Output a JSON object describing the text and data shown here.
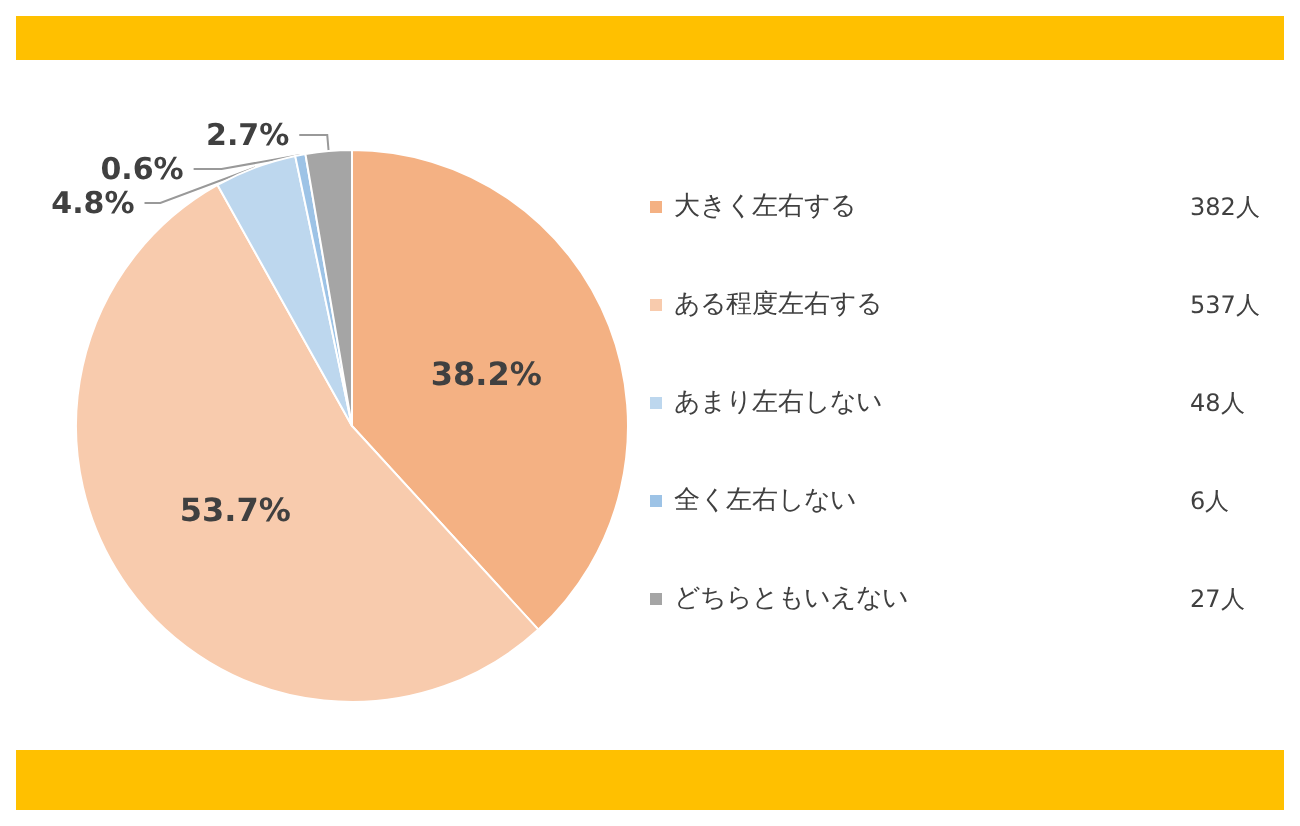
{
  "chart_data": {
    "type": "pie",
    "categories": [
      "大きく左右する",
      "ある程度左右する",
      "あまり左右しない",
      "全く左右しない",
      "どちらともいえない"
    ],
    "values": [
      38.2,
      53.7,
      4.8,
      0.6,
      2.7
    ],
    "value_labels": [
      "38.2%",
      "53.7%",
      "4.8%",
      "0.6%",
      "2.7%"
    ],
    "colors": [
      "#f4b183",
      "#f8cbad",
      "#bdd7ee",
      "#9dc3e6",
      "#a5a5a5"
    ],
    "annotations": [
      "382人",
      "537人",
      "48人",
      "6人",
      "27人"
    ],
    "legend": "right"
  }
}
